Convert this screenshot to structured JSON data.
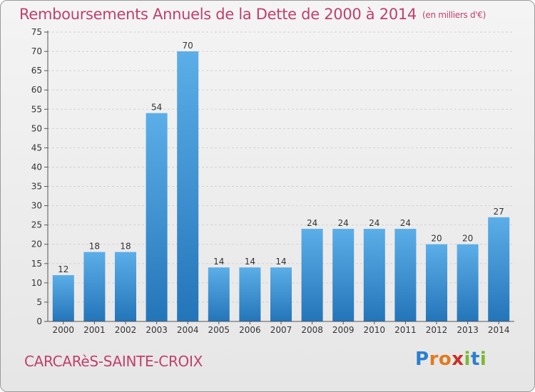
{
  "chart_data": {
    "type": "bar",
    "title": "Remboursements Annuels de la Dette de 2000 à 2014",
    "unit": "(en milliers d'€)",
    "categories": [
      "2000",
      "2001",
      "2002",
      "2003",
      "2004",
      "2005",
      "2006",
      "2007",
      "2008",
      "2009",
      "2010",
      "2011",
      "2012",
      "2013",
      "2014"
    ],
    "values": [
      12,
      18,
      18,
      54,
      70,
      14,
      14,
      14,
      24,
      24,
      24,
      24,
      20,
      20,
      27
    ],
    "ylim": [
      0,
      75
    ],
    "yticks": [
      0,
      5,
      10,
      15,
      20,
      25,
      30,
      35,
      40,
      45,
      50,
      55,
      60,
      65,
      70,
      75
    ],
    "grid": true,
    "bar_color": "#3a8fd6",
    "title_color": "#c0406a"
  },
  "footer": {
    "commune": "CARCARèS-SAINTE-CROIX",
    "logo_letters": [
      {
        "ch": "P",
        "color": "#2a7fd0"
      },
      {
        "ch": "r",
        "color": "#e07b1e"
      },
      {
        "ch": "o",
        "color": "#e07b1e"
      },
      {
        "ch": "x",
        "color": "#c8302a"
      },
      {
        "ch": "i",
        "color": "#7cb82f"
      },
      {
        "ch": "t",
        "color": "#2a7fd0"
      },
      {
        "ch": "i",
        "color": "#7cb82f"
      }
    ]
  }
}
